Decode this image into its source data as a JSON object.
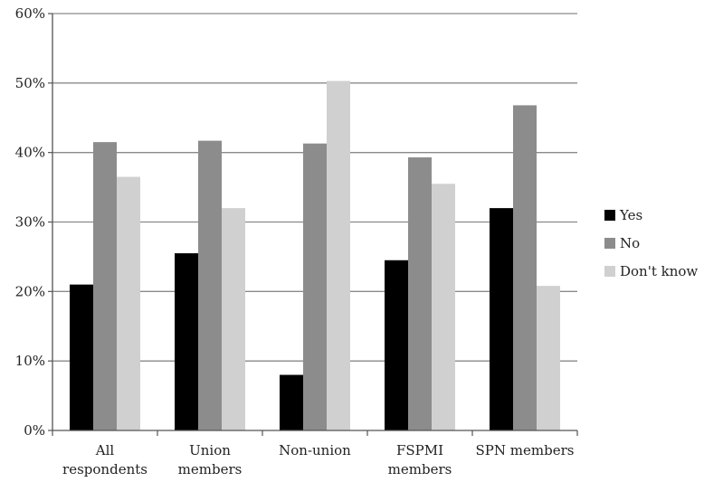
{
  "chart_data": {
    "type": "bar",
    "categories": [
      [
        "All",
        "respondents"
      ],
      [
        "Union",
        "members"
      ],
      [
        "Non-union"
      ],
      [
        "FSPMI",
        "members"
      ],
      [
        "SPN members"
      ]
    ],
    "series": [
      {
        "name": "Yes",
        "color": "#000000",
        "values": [
          21,
          25.5,
          8,
          24.5,
          32
        ]
      },
      {
        "name": "No",
        "color": "#8c8c8c",
        "values": [
          41.5,
          41.7,
          41.3,
          39.3,
          46.8
        ]
      },
      {
        "name": "Don't know",
        "color": "#d0d0d0",
        "values": [
          36.5,
          32,
          50.3,
          35.5,
          20.8
        ]
      }
    ],
    "y_ticks": [
      "0%",
      "10%",
      "20%",
      "30%",
      "40%",
      "50%",
      "60%"
    ],
    "ylim": [
      0,
      60
    ],
    "grid": true,
    "legend_position": "right",
    "title": "",
    "xlabel": "",
    "ylabel": ""
  }
}
